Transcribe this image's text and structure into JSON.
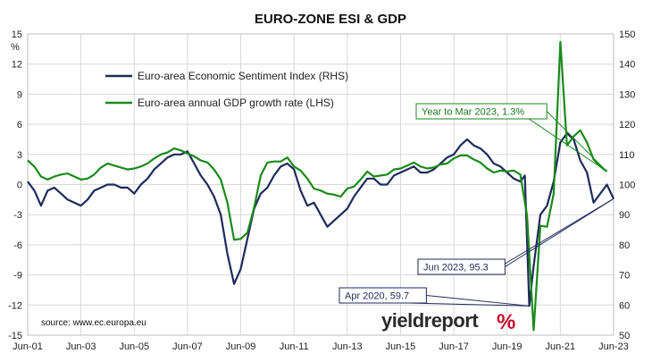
{
  "chart_data": {
    "type": "line",
    "title": "EURO-ZONE ESI & GDP",
    "source": "source: www.ec.europa.eu",
    "logo": {
      "text": "yieldreport",
      "symbol": "%"
    },
    "left_axis": {
      "label": "%",
      "min": -15,
      "max": 15,
      "ticks": [
        "-15",
        "-12",
        "-9",
        "-6",
        "-3",
        "0",
        "3",
        "6",
        "9",
        "12",
        "15"
      ]
    },
    "right_axis": {
      "min": 50,
      "max": 150,
      "ticks": [
        "50",
        "60",
        "70",
        "80",
        "90",
        "100",
        "110",
        "120",
        "130",
        "140",
        "150"
      ]
    },
    "x_ticks": [
      "Jun-01",
      "Jun-03",
      "Jun-05",
      "Jun-07",
      "Jun-09",
      "Jun-11",
      "Jun-13",
      "Jun-15",
      "Jun-17",
      "Jun-19",
      "Jun-21",
      "Jun-23"
    ],
    "x_range": [
      "2001-06",
      "2023-06"
    ],
    "grid": true,
    "legend": {
      "placement": "top-left"
    },
    "colors": {
      "esi": "#1f2a5a",
      "gdp": "#1a8a1a"
    },
    "series": [
      {
        "name": "Euro-area Economic Sentiment Index (RHS)",
        "axis": "right",
        "points": [
          [
            "2001-06",
            101
          ],
          [
            "2001-09",
            98
          ],
          [
            "2001-12",
            93
          ],
          [
            "2002-03",
            98
          ],
          [
            "2002-06",
            99
          ],
          [
            "2002-09",
            97
          ],
          [
            "2002-12",
            95
          ],
          [
            "2003-03",
            94
          ],
          [
            "2003-06",
            93
          ],
          [
            "2003-09",
            95
          ],
          [
            "2003-12",
            98
          ],
          [
            "2004-03",
            99
          ],
          [
            "2004-06",
            100
          ],
          [
            "2004-09",
            100
          ],
          [
            "2004-12",
            99
          ],
          [
            "2005-03",
            99
          ],
          [
            "2005-06",
            97
          ],
          [
            "2005-09",
            100
          ],
          [
            "2005-12",
            102
          ],
          [
            "2006-03",
            105
          ],
          [
            "2006-06",
            107
          ],
          [
            "2006-09",
            109
          ],
          [
            "2006-12",
            110
          ],
          [
            "2007-03",
            110
          ],
          [
            "2007-06",
            111
          ],
          [
            "2007-09",
            107
          ],
          [
            "2007-12",
            103
          ],
          [
            "2008-03",
            100
          ],
          [
            "2008-06",
            96
          ],
          [
            "2008-09",
            90
          ],
          [
            "2008-12",
            77
          ],
          [
            "2009-03",
            67
          ],
          [
            "2009-06",
            72
          ],
          [
            "2009-09",
            82
          ],
          [
            "2009-12",
            92
          ],
          [
            "2010-03",
            97
          ],
          [
            "2010-06",
            99
          ],
          [
            "2010-09",
            103
          ],
          [
            "2010-12",
            106
          ],
          [
            "2011-03",
            107
          ],
          [
            "2011-06",
            105
          ],
          [
            "2011-09",
            98
          ],
          [
            "2011-12",
            93
          ],
          [
            "2012-03",
            94
          ],
          [
            "2012-06",
            90
          ],
          [
            "2012-09",
            86
          ],
          [
            "2012-12",
            88
          ],
          [
            "2013-03",
            90
          ],
          [
            "2013-06",
            92
          ],
          [
            "2013-09",
            96
          ],
          [
            "2013-12",
            99
          ],
          [
            "2014-03",
            102
          ],
          [
            "2014-06",
            102
          ],
          [
            "2014-09",
            100
          ],
          [
            "2014-12",
            100
          ],
          [
            "2015-03",
            103
          ],
          [
            "2015-06",
            104
          ],
          [
            "2015-09",
            105
          ],
          [
            "2015-12",
            106
          ],
          [
            "2016-03",
            104
          ],
          [
            "2016-06",
            104
          ],
          [
            "2016-09",
            105
          ],
          [
            "2016-12",
            107
          ],
          [
            "2017-03",
            109
          ],
          [
            "2017-06",
            110
          ],
          [
            "2017-09",
            113
          ],
          [
            "2017-12",
            115
          ],
          [
            "2018-03",
            113
          ],
          [
            "2018-06",
            112
          ],
          [
            "2018-09",
            110
          ],
          [
            "2018-12",
            107
          ],
          [
            "2019-03",
            106
          ],
          [
            "2019-06",
            104
          ],
          [
            "2019-09",
            102
          ],
          [
            "2019-12",
            101
          ],
          [
            "2020-02",
            103
          ],
          [
            "2020-04",
            59.7
          ],
          [
            "2020-06",
            73
          ],
          [
            "2020-09",
            90
          ],
          [
            "2020-12",
            93
          ],
          [
            "2021-03",
            101
          ],
          [
            "2021-06",
            114
          ],
          [
            "2021-09",
            117
          ],
          [
            "2021-12",
            115
          ],
          [
            "2022-03",
            108
          ],
          [
            "2022-06",
            104
          ],
          [
            "2022-09",
            94
          ],
          [
            "2022-12",
            97
          ],
          [
            "2023-03",
            100
          ],
          [
            "2023-06",
            95.3
          ]
        ]
      },
      {
        "name": "Euro-area annual GDP growth rate (LHS)",
        "axis": "left",
        "points": [
          [
            "2001-06",
            2.4
          ],
          [
            "2001-09",
            1.8
          ],
          [
            "2001-12",
            0.8
          ],
          [
            "2002-03",
            0.5
          ],
          [
            "2002-06",
            0.8
          ],
          [
            "2002-09",
            1.0
          ],
          [
            "2002-12",
            1.1
          ],
          [
            "2003-03",
            0.8
          ],
          [
            "2003-06",
            0.5
          ],
          [
            "2003-09",
            0.6
          ],
          [
            "2003-12",
            1.0
          ],
          [
            "2004-03",
            1.7
          ],
          [
            "2004-06",
            2.1
          ],
          [
            "2004-09",
            1.9
          ],
          [
            "2004-12",
            1.7
          ],
          [
            "2005-03",
            1.5
          ],
          [
            "2005-06",
            1.6
          ],
          [
            "2005-09",
            1.8
          ],
          [
            "2005-12",
            2.1
          ],
          [
            "2006-03",
            2.6
          ],
          [
            "2006-06",
            3.0
          ],
          [
            "2006-09",
            3.2
          ],
          [
            "2006-12",
            3.6
          ],
          [
            "2007-03",
            3.4
          ],
          [
            "2007-06",
            3.1
          ],
          [
            "2007-09",
            2.8
          ],
          [
            "2007-12",
            2.4
          ],
          [
            "2008-03",
            2.2
          ],
          [
            "2008-06",
            1.5
          ],
          [
            "2008-09",
            0.5
          ],
          [
            "2008-12",
            -1.8
          ],
          [
            "2009-03",
            -5.5
          ],
          [
            "2009-06",
            -5.4
          ],
          [
            "2009-09",
            -4.8
          ],
          [
            "2009-12",
            -2.3
          ],
          [
            "2010-03",
            0.9
          ],
          [
            "2010-06",
            2.2
          ],
          [
            "2010-09",
            2.3
          ],
          [
            "2010-12",
            2.3
          ],
          [
            "2011-03",
            2.7
          ],
          [
            "2011-06",
            1.8
          ],
          [
            "2011-09",
            1.4
          ],
          [
            "2011-12",
            0.6
          ],
          [
            "2012-03",
            -0.4
          ],
          [
            "2012-06",
            -0.6
          ],
          [
            "2012-09",
            -0.9
          ],
          [
            "2012-12",
            -1.0
          ],
          [
            "2013-03",
            -1.2
          ],
          [
            "2013-06",
            -0.4
          ],
          [
            "2013-09",
            -0.2
          ],
          [
            "2013-12",
            0.5
          ],
          [
            "2014-03",
            1.3
          ],
          [
            "2014-06",
            0.8
          ],
          [
            "2014-09",
            0.9
          ],
          [
            "2014-12",
            1.0
          ],
          [
            "2015-03",
            1.5
          ],
          [
            "2015-06",
            1.6
          ],
          [
            "2015-09",
            1.9
          ],
          [
            "2015-12",
            2.2
          ],
          [
            "2016-03",
            1.8
          ],
          [
            "2016-06",
            1.6
          ],
          [
            "2016-09",
            1.7
          ],
          [
            "2016-12",
            2.0
          ],
          [
            "2017-03",
            2.1
          ],
          [
            "2017-06",
            2.6
          ],
          [
            "2017-09",
            2.9
          ],
          [
            "2017-12",
            2.9
          ],
          [
            "2018-03",
            2.5
          ],
          [
            "2018-06",
            2.2
          ],
          [
            "2018-09",
            1.6
          ],
          [
            "2018-12",
            1.2
          ],
          [
            "2019-03",
            1.4
          ],
          [
            "2019-06",
            1.3
          ],
          [
            "2019-09",
            1.4
          ],
          [
            "2019-12",
            1.0
          ],
          [
            "2020-03",
            -3.1
          ],
          [
            "2020-06",
            -14.5
          ],
          [
            "2020-09",
            -4.1
          ],
          [
            "2020-12",
            -4.2
          ],
          [
            "2021-03",
            -0.9
          ],
          [
            "2021-06",
            14.2
          ],
          [
            "2021-09",
            3.9
          ],
          [
            "2021-12",
            4.8
          ],
          [
            "2022-03",
            5.4
          ],
          [
            "2022-06",
            4.2
          ],
          [
            "2022-09",
            2.5
          ],
          [
            "2022-12",
            1.8
          ],
          [
            "2023-03",
            1.3
          ]
        ]
      }
    ],
    "annotations": [
      {
        "text": "Year to Mar 2023, 1.3%",
        "series": "gdp",
        "x": "2023-03",
        "y": 1.3
      },
      {
        "text": "Jun 2023, 95.3",
        "series": "esi",
        "x": "2023-06",
        "y": 95.3
      },
      {
        "text": "Apr 2020, 59.7",
        "series": "esi",
        "x": "2020-04",
        "y": 59.7
      }
    ]
  }
}
